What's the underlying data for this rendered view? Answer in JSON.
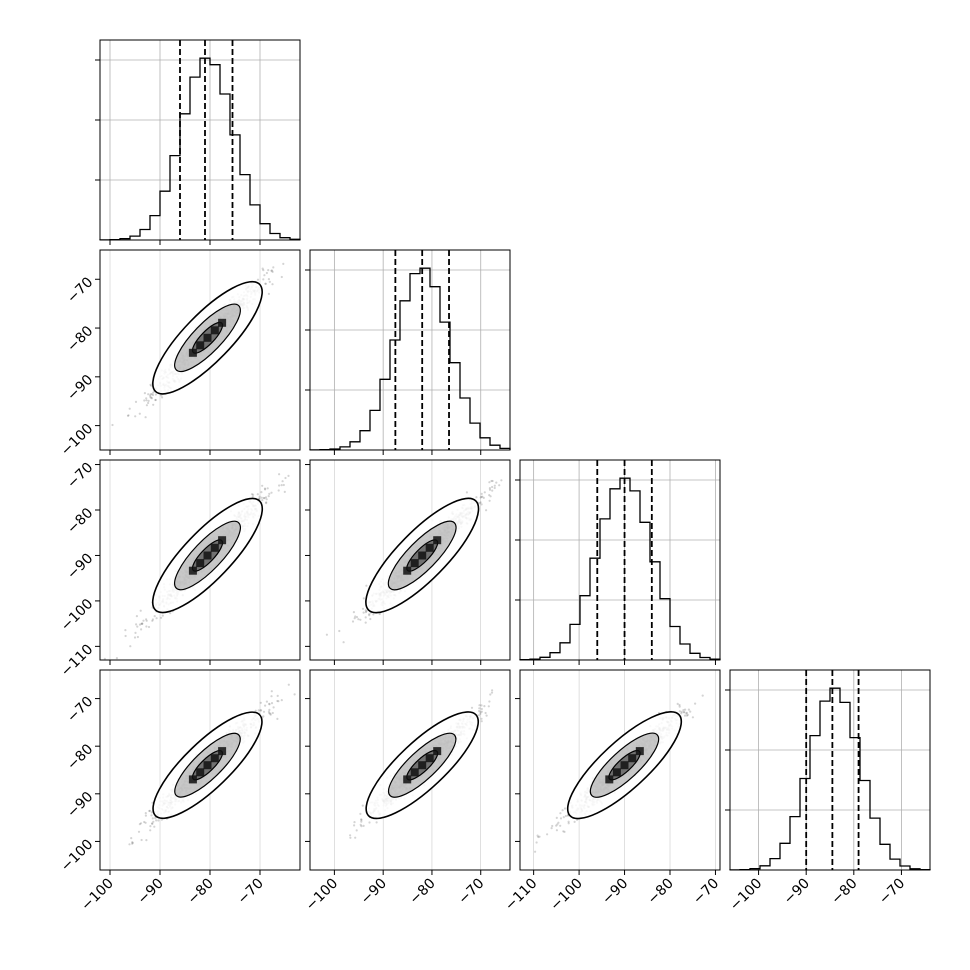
{
  "chart_data": {
    "type": "corner",
    "n_params": 4,
    "params": [
      {
        "mean": -80.5,
        "sd": 5.2,
        "q16": -86.0,
        "q50": -81.0,
        "q84": -75.5,
        "range": [
          -102,
          -62
        ],
        "ticks": [
          -100,
          -90,
          -80,
          -70
        ]
      },
      {
        "mean": -82.0,
        "sd": 5.5,
        "q16": -87.5,
        "q50": -82.0,
        "q84": -76.5,
        "range": [
          -105,
          -64
        ],
        "ticks": [
          -100,
          -90,
          -80,
          -70
        ]
      },
      {
        "mean": -90.0,
        "sd": 6.0,
        "q16": -96.0,
        "q50": -90.0,
        "q84": -84.0,
        "range": [
          -113,
          -69
        ],
        "ticks": [
          -110,
          -100,
          -90,
          -80,
          -70
        ]
      },
      {
        "mean": -84.0,
        "sd": 5.3,
        "q16": -90.0,
        "q50": -84.5,
        "q84": -79.0,
        "range": [
          -106,
          -64
        ],
        "ticks": [
          -100,
          -90,
          -80,
          -70
        ]
      }
    ],
    "correlation": 0.97,
    "hist_bins": 20,
    "grid": true
  },
  "colors": {
    "frame": "#000000",
    "grid": "#b0b0b0",
    "points": "#555555",
    "contour": "#000000"
  }
}
